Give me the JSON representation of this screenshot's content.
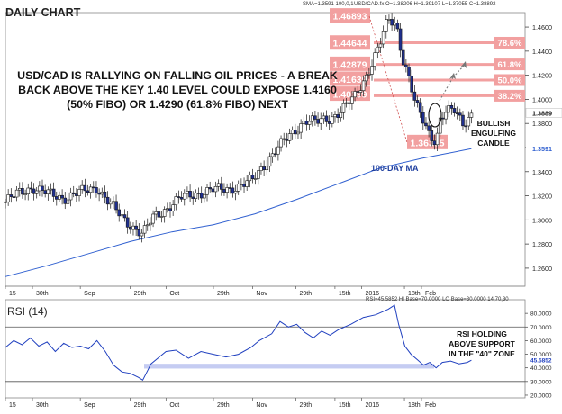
{
  "header": {
    "title": "DAILY CHART",
    "indicator_readout": "SMA=1.3591  100,0,1",
    "ohlc_readout": "USD/CAD.fx  O=1.38206 H=1.39107 L=1.37055 C=1.38892"
  },
  "headline": "USD/CAD IS RALLYING ON FALLING OIL PRICES - A BREAK BACK ABOVE THE KEY 1.40 LEVEL COULD EXPOSE 1.4160 (50% FIBO) OR 1.4290 (61.8% FIBO) NEXT",
  "annotations": {
    "engulfing": "BULLISH ENGULFING CANDLE",
    "ma_label": "100-DAY MA",
    "rsi_note": "RSI HOLDING ABOVE SUPPORT IN THE \"40\" ZONE"
  },
  "rsi_panel": {
    "title": "RSI (14)",
    "readout": "RSI=45.5852  HI Base=70.0000  LO Base=30.0000   14,70,30"
  },
  "colors": {
    "price_line": "#1a1a1a",
    "bull_candle": "#ffffff",
    "bear_candle": "#1f2f8f",
    "ma_line": "#3060d0",
    "rsi_line": "#1f3fbf",
    "fib_band": "#f2a0a0",
    "fib_label_text": "#ffffff",
    "support_band": "#c5ccf2",
    "current_price_box": "#e33333"
  },
  "chart_data": [
    {
      "type": "candlestick",
      "title": "DAILY CHART",
      "symbol": "USD/CAD",
      "y_ticks": [
        "1.4600",
        "1.4400",
        "1.4200",
        "1.4000",
        "1.3800",
        "1.3600",
        "1.3400",
        "1.3200",
        "1.3000",
        "1.2800",
        "1.2600"
      ],
      "ylim": [
        1.245,
        1.472
      ],
      "x_ticks": [
        {
          "label": "15",
          "pos": 0.0
        },
        {
          "label": "30th",
          "pos": 0.065
        },
        {
          "label": "Sep",
          "pos": 0.18
        },
        {
          "label": "29th",
          "pos": 0.3
        },
        {
          "label": "Oct",
          "pos": 0.386
        },
        {
          "label": "29th",
          "pos": 0.5
        },
        {
          "label": "Nov",
          "pos": 0.594
        },
        {
          "label": "29th",
          "pos": 0.698
        },
        {
          "label": "15th",
          "pos": 0.792
        },
        {
          "label": "2016",
          "pos": 0.856
        },
        {
          "label": "18th",
          "pos": 0.959
        },
        {
          "label": "Feb",
          "pos": 1.0
        }
      ],
      "anchors": [
        [
          0.0,
          1.315
        ],
        [
          0.03,
          1.322
        ],
        [
          0.065,
          1.327
        ],
        [
          0.1,
          1.322
        ],
        [
          0.14,
          1.318
        ],
        [
          0.18,
          1.323
        ],
        [
          0.22,
          1.327
        ],
        [
          0.25,
          1.314
        ],
        [
          0.28,
          1.302
        ],
        [
          0.3,
          1.296
        ],
        [
          0.33,
          1.288
        ],
        [
          0.355,
          1.302
        ],
        [
          0.386,
          1.309
        ],
        [
          0.42,
          1.318
        ],
        [
          0.46,
          1.322
        ],
        [
          0.5,
          1.325
        ],
        [
          0.54,
          1.326
        ],
        [
          0.57,
          1.329
        ],
        [
          0.594,
          1.333
        ],
        [
          0.62,
          1.345
        ],
        [
          0.65,
          1.358
        ],
        [
          0.69,
          1.372
        ],
        [
          0.72,
          1.383
        ],
        [
          0.75,
          1.381
        ],
        [
          0.78,
          1.384
        ],
        [
          0.81,
          1.392
        ],
        [
          0.84,
          1.402
        ],
        [
          0.865,
          1.418
        ],
        [
          0.88,
          1.43
        ],
        [
          0.9,
          1.446
        ],
        [
          0.92,
          1.466
        ],
        [
          0.94,
          1.462
        ],
        [
          0.955,
          1.434
        ],
        [
          0.97,
          1.418
        ],
        [
          0.985,
          1.396
        ],
        [
          1.0,
          1.385
        ],
        [
          1.02,
          1.37
        ],
        [
          1.035,
          1.366
        ],
        [
          1.045,
          1.384
        ],
        [
          1.06,
          1.39
        ],
        [
          1.08,
          1.39
        ],
        [
          1.1,
          1.38
        ],
        [
          1.12,
          1.388
        ]
      ],
      "ma_100": [
        [
          0.0,
          1.253
        ],
        [
          0.1,
          1.262
        ],
        [
          0.2,
          1.272
        ],
        [
          0.3,
          1.282
        ],
        [
          0.4,
          1.29
        ],
        [
          0.5,
          1.296
        ],
        [
          0.6,
          1.305
        ],
        [
          0.7,
          1.317
        ],
        [
          0.8,
          1.33
        ],
        [
          0.9,
          1.343
        ],
        [
          1.0,
          1.351
        ],
        [
          1.12,
          1.359
        ]
      ],
      "fib_levels": [
        {
          "pct": "78.6%",
          "price": 1.447
        },
        {
          "pct": "61.8%",
          "price": 1.429
        },
        {
          "pct": "50.0%",
          "price": 1.416
        },
        {
          "pct": "38.2%",
          "price": 1.403
        }
      ],
      "price_labels": [
        "1.46893",
        "1.44644",
        "1.42879",
        "1.41639",
        "1.40399",
        "1.36385"
      ],
      "current_price": "1.3889",
      "ma_value_tag": "1.3591"
    },
    {
      "type": "line",
      "title": "RSI (14)",
      "y_ticks": [
        "80.0000",
        "70.0000",
        "60.0000",
        "50.0000",
        "40.0000",
        "30.0000",
        "20.0000"
      ],
      "ylim": [
        18,
        90
      ],
      "levels": [
        70,
        30
      ],
      "support_zone": [
        39.5,
        43.0
      ],
      "x_ticks": [
        {
          "label": "15",
          "pos": 0.0
        },
        {
          "label": "30th",
          "pos": 0.065
        },
        {
          "label": "Sep",
          "pos": 0.18
        },
        {
          "label": "29th",
          "pos": 0.3
        },
        {
          "label": "Oct",
          "pos": 0.386
        },
        {
          "label": "29th",
          "pos": 0.5
        },
        {
          "label": "Nov",
          "pos": 0.594
        },
        {
          "label": "29th",
          "pos": 0.698
        },
        {
          "label": "15th",
          "pos": 0.792
        },
        {
          "label": "2016",
          "pos": 0.856
        },
        {
          "label": "18th",
          "pos": 0.959
        },
        {
          "label": "Feb",
          "pos": 1.0
        }
      ],
      "series": [
        [
          0.0,
          55
        ],
        [
          0.02,
          60
        ],
        [
          0.04,
          57
        ],
        [
          0.06,
          62
        ],
        [
          0.08,
          56
        ],
        [
          0.1,
          59
        ],
        [
          0.12,
          52
        ],
        [
          0.14,
          58
        ],
        [
          0.16,
          55
        ],
        [
          0.18,
          56
        ],
        [
          0.2,
          54
        ],
        [
          0.22,
          60
        ],
        [
          0.24,
          52
        ],
        [
          0.26,
          42
        ],
        [
          0.28,
          37
        ],
        [
          0.3,
          36
        ],
        [
          0.32,
          33
        ],
        [
          0.33,
          31
        ],
        [
          0.35,
          43
        ],
        [
          0.37,
          48
        ],
        [
          0.386,
          52
        ],
        [
          0.41,
          53
        ],
        [
          0.44,
          47
        ],
        [
          0.47,
          52
        ],
        [
          0.5,
          50
        ],
        [
          0.53,
          48
        ],
        [
          0.56,
          50
        ],
        [
          0.59,
          55
        ],
        [
          0.61,
          60
        ],
        [
          0.64,
          65
        ],
        [
          0.66,
          74
        ],
        [
          0.68,
          70
        ],
        [
          0.7,
          72
        ],
        [
          0.72,
          66
        ],
        [
          0.74,
          62
        ],
        [
          0.76,
          67
        ],
        [
          0.78,
          64
        ],
        [
          0.8,
          68
        ],
        [
          0.83,
          72
        ],
        [
          0.86,
          77
        ],
        [
          0.89,
          79
        ],
        [
          0.92,
          83
        ],
        [
          0.935,
          86
        ],
        [
          0.945,
          72
        ],
        [
          0.96,
          56
        ],
        [
          0.975,
          50
        ],
        [
          0.99,
          46
        ],
        [
          1.005,
          42
        ],
        [
          1.02,
          44
        ],
        [
          1.035,
          40
        ],
        [
          1.05,
          44
        ],
        [
          1.07,
          45
        ],
        [
          1.09,
          43
        ],
        [
          1.11,
          44
        ],
        [
          1.12,
          45.6
        ]
      ],
      "current_value_tag": "45.5852"
    }
  ]
}
